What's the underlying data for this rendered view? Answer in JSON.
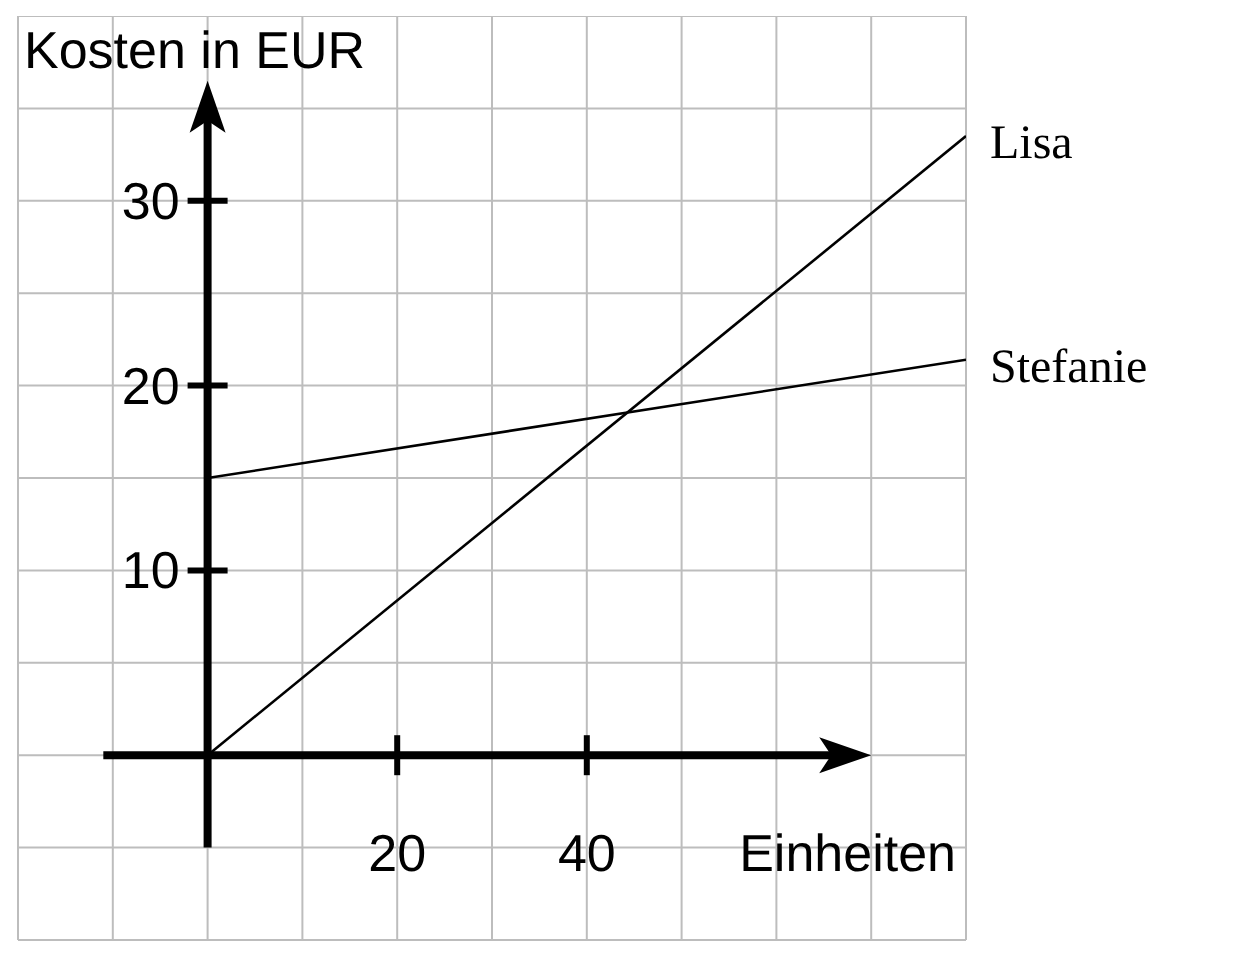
{
  "chart_data": {
    "type": "line",
    "ylabel": "Kosten in EUR",
    "xlabel": "Einheiten",
    "x": [
      0,
      80
    ],
    "series": [
      {
        "name": "Lisa",
        "color": "#000000",
        "values": [
          0,
          33.5
        ]
      },
      {
        "name": "Stefanie",
        "color": "#000000",
        "values": [
          15,
          21.4
        ]
      }
    ],
    "xlim": [
      -20,
      80
    ],
    "ylim": [
      -10,
      40
    ],
    "xticks": [
      {
        "value": -20,
        "label": null
      },
      {
        "value": -10,
        "label": null
      },
      {
        "value": 0,
        "label": null
      },
      {
        "value": 10,
        "label": null
      },
      20,
      {
        "value": 30,
        "label": null
      },
      40,
      {
        "value": 50,
        "label": null
      },
      {
        "value": 60,
        "label": null
      },
      {
        "value": 70,
        "label": null
      },
      {
        "value": 80,
        "label": null
      }
    ],
    "yticks": [
      {
        "value": -10,
        "label": null
      },
      {
        "value": -5,
        "label": null
      },
      {
        "value": 0,
        "label": null
      },
      {
        "value": 5,
        "label": null
      },
      10,
      {
        "value": 15,
        "label": null
      },
      20,
      {
        "value": 25,
        "label": null
      },
      30,
      {
        "value": 35,
        "label": null
      },
      {
        "value": 40,
        "label": null
      }
    ],
    "grid": true,
    "marker": "none"
  }
}
